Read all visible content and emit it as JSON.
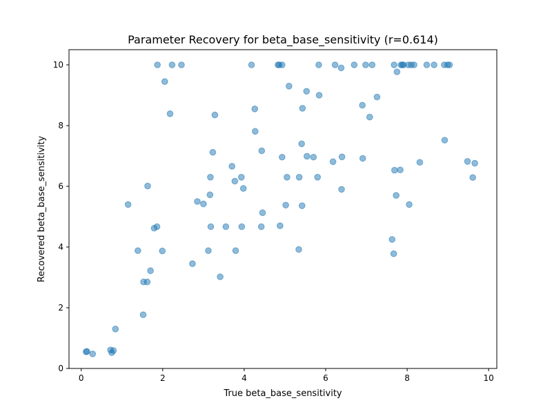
{
  "chart_data": {
    "type": "scatter",
    "title": "Parameter Recovery for beta_base_sensitivity (r=0.614)",
    "xlabel": "True beta_base_sensitivity",
    "ylabel": "Recovered beta_base_sensitivity",
    "xlim": [
      -0.3,
      10.2
    ],
    "ylim": [
      0,
      10.5
    ],
    "xticks": [
      0,
      2,
      4,
      6,
      8,
      10
    ],
    "yticks": [
      0,
      2,
      4,
      6,
      8,
      10
    ],
    "grid": false,
    "marker_color": "#1f77b4",
    "marker_alpha": 0.5,
    "points": [
      [
        0.12,
        0.55
      ],
      [
        0.14,
        0.56
      ],
      [
        0.28,
        0.48
      ],
      [
        0.72,
        0.61
      ],
      [
        0.75,
        0.52
      ],
      [
        0.79,
        0.59
      ],
      [
        0.84,
        1.3
      ],
      [
        1.15,
        5.4
      ],
      [
        1.39,
        3.88
      ],
      [
        1.52,
        1.77
      ],
      [
        1.53,
        2.85
      ],
      [
        1.62,
        2.85
      ],
      [
        1.63,
        6.01
      ],
      [
        1.7,
        3.22
      ],
      [
        1.79,
        4.62
      ],
      [
        1.86,
        4.67
      ],
      [
        1.87,
        10.0
      ],
      [
        1.99,
        3.87
      ],
      [
        2.05,
        9.45
      ],
      [
        2.18,
        8.39
      ],
      [
        2.23,
        10.0
      ],
      [
        2.46,
        10.0
      ],
      [
        2.73,
        3.45
      ],
      [
        2.85,
        5.5
      ],
      [
        3.0,
        5.42
      ],
      [
        3.12,
        3.88
      ],
      [
        3.16,
        5.72
      ],
      [
        3.17,
        6.3
      ],
      [
        3.18,
        4.67
      ],
      [
        3.23,
        7.12
      ],
      [
        3.28,
        8.35
      ],
      [
        3.41,
        3.02
      ],
      [
        3.55,
        4.67
      ],
      [
        3.7,
        6.66
      ],
      [
        3.77,
        6.17
      ],
      [
        3.79,
        3.88
      ],
      [
        3.93,
        6.3
      ],
      [
        3.94,
        4.67
      ],
      [
        3.98,
        5.93
      ],
      [
        4.18,
        10.0
      ],
      [
        4.26,
        8.55
      ],
      [
        4.27,
        7.81
      ],
      [
        4.42,
        4.67
      ],
      [
        4.43,
        7.17
      ],
      [
        4.45,
        5.13
      ],
      [
        4.83,
        10.0
      ],
      [
        4.86,
        10.0
      ],
      [
        4.88,
        4.7
      ],
      [
        4.93,
        10.0
      ],
      [
        4.93,
        6.96
      ],
      [
        5.02,
        5.38
      ],
      [
        5.05,
        6.3
      ],
      [
        5.1,
        9.3
      ],
      [
        5.34,
        3.92
      ],
      [
        5.35,
        6.3
      ],
      [
        5.41,
        7.4
      ],
      [
        5.42,
        5.36
      ],
      [
        5.43,
        8.57
      ],
      [
        5.53,
        9.13
      ],
      [
        5.54,
        6.99
      ],
      [
        5.7,
        6.96
      ],
      [
        5.8,
        6.3
      ],
      [
        5.83,
        10.0
      ],
      [
        5.84,
        9.0
      ],
      [
        6.18,
        6.81
      ],
      [
        6.23,
        10.0
      ],
      [
        6.38,
        9.9
      ],
      [
        6.39,
        5.9
      ],
      [
        6.4,
        6.97
      ],
      [
        6.7,
        10.0
      ],
      [
        6.9,
        8.67
      ],
      [
        6.91,
        6.92
      ],
      [
        6.98,
        10.0
      ],
      [
        7.08,
        8.28
      ],
      [
        7.14,
        10.0
      ],
      [
        7.26,
        8.94
      ],
      [
        7.63,
        4.25
      ],
      [
        7.67,
        3.78
      ],
      [
        7.68,
        10.0
      ],
      [
        7.69,
        6.53
      ],
      [
        7.73,
        5.7
      ],
      [
        7.75,
        9.77
      ],
      [
        7.83,
        6.54
      ],
      [
        7.85,
        10.0
      ],
      [
        7.88,
        10.0
      ],
      [
        7.91,
        10.0
      ],
      [
        8.03,
        10.0
      ],
      [
        8.05,
        5.4
      ],
      [
        8.1,
        10.0
      ],
      [
        8.17,
        10.0
      ],
      [
        8.31,
        6.79
      ],
      [
        8.48,
        10.0
      ],
      [
        8.66,
        10.0
      ],
      [
        8.91,
        10.0
      ],
      [
        8.92,
        7.52
      ],
      [
        8.99,
        10.0
      ],
      [
        9.04,
        10.0
      ],
      [
        9.48,
        6.82
      ],
      [
        9.61,
        6.29
      ],
      [
        9.66,
        6.76
      ]
    ]
  }
}
